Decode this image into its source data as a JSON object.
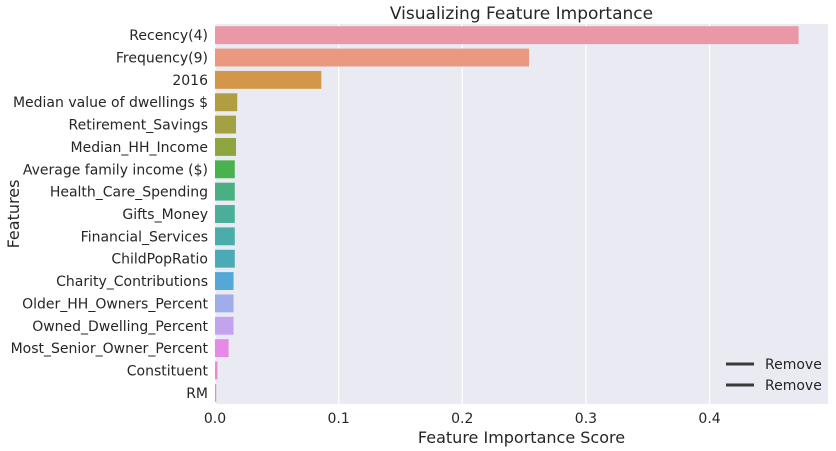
{
  "chart_data": {
    "type": "bar",
    "orientation": "horizontal",
    "title": "Visualizing Feature Importance",
    "xlabel": "Feature Importance Score",
    "ylabel": "Features",
    "xlim": [
      0,
      0.4958
    ],
    "xticks": [
      0.0,
      0.1,
      0.2,
      0.3,
      0.4
    ],
    "xtick_labels": [
      "0.0",
      "0.1",
      "0.2",
      "0.3",
      "0.4"
    ],
    "grid": true,
    "background": "#eaeaf2",
    "legend": {
      "placement": "bottom-right",
      "entries": [
        "Remove",
        "Remove"
      ],
      "line_color": "#3a3a3a"
    },
    "categories": [
      "Recency(4)",
      "Frequency(9)",
      "2016",
      "Median value of dwellings $",
      "Retirement_Savings",
      "Median_HH_Income",
      "Average family income ($)",
      "Health_Care_Spending",
      "Gifts_Money",
      "Financial_Services",
      "ChildPopRatio",
      "Charity_Contributions",
      "Older_HH_Owners_Percent",
      "Owned_Dwelling_Percent",
      "Most_Senior_Owner_Percent",
      "Constituent",
      "RM"
    ],
    "values": [
      0.472,
      0.254,
      0.086,
      0.018,
      0.017,
      0.017,
      0.016,
      0.016,
      0.016,
      0.016,
      0.016,
      0.015,
      0.015,
      0.015,
      0.011,
      0.002,
      0.001
    ],
    "colors": [
      "#ea97a6",
      "#ea9880",
      "#d39749",
      "#b19e41",
      "#a3a141",
      "#8fa53f",
      "#49b24e",
      "#4ab083",
      "#4aae98",
      "#4bacaa",
      "#4caab6",
      "#54a8d6",
      "#9fadea",
      "#c2a3ee",
      "#e58ae6",
      "#ea8bd1",
      "#ea8eba"
    ]
  }
}
